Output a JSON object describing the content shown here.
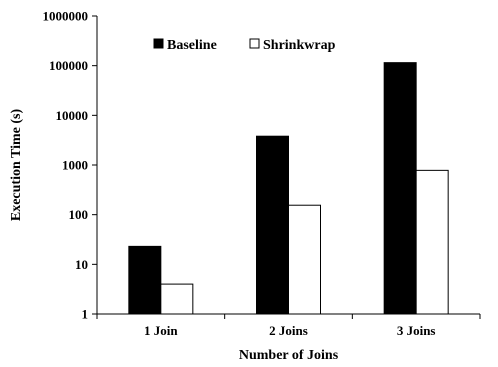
{
  "chart_data": {
    "type": "bar",
    "yscale": "log",
    "ylim": [
      1,
      1000000
    ],
    "yticks": [
      "1",
      "10",
      "100",
      "1000",
      "10000",
      "100000",
      "1000000"
    ],
    "categories": [
      "1 Join",
      "2 Joins",
      "3 Joins"
    ],
    "xlabel": "Number of Joins",
    "ylabel": "Execution Time (s)",
    "grid": false,
    "legend_position": "top-left",
    "series": [
      {
        "name": "Baseline",
        "values": [
          23,
          3800,
          115000
        ],
        "color": "#000000"
      },
      {
        "name": "Shrinkwrap",
        "values": [
          4,
          155,
          780
        ],
        "color": "#ffffff"
      }
    ]
  }
}
